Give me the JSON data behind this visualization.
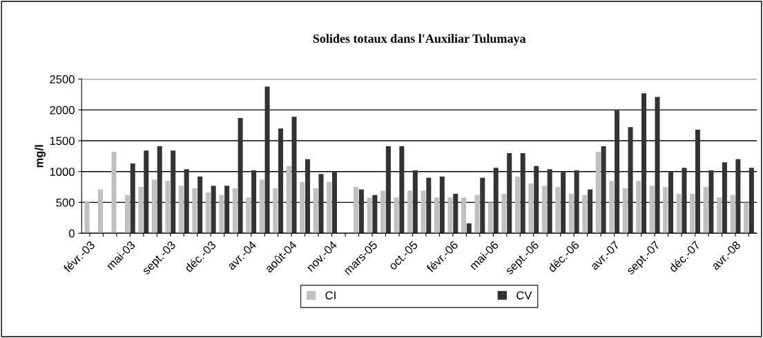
{
  "chart_data": {
    "type": "bar",
    "title": "Solides totaux dans l'Auxiliar Tulumaya",
    "ylabel": "mg/l",
    "categories": [
      "févr.-03",
      null,
      null,
      "mai-03",
      null,
      null,
      "sept.-03",
      null,
      null,
      "déc.-03",
      null,
      null,
      "avr.-04",
      null,
      null,
      "août-04",
      null,
      null,
      "nov.-04",
      null,
      null,
      "mars-05",
      null,
      null,
      "oct.-05",
      null,
      null,
      "févr.-06",
      null,
      null,
      "mai-06",
      null,
      null,
      "sept.-06",
      null,
      null,
      "déc.-06",
      null,
      null,
      "avr.-07",
      null,
      null,
      "sept.-07",
      null,
      null,
      "déc.-07",
      null,
      null,
      "avr.-08",
      null
    ],
    "series": [
      {
        "name": "CI",
        "color": "#c0c0c0",
        "values": [
          520,
          710,
          1320,
          620,
          750,
          870,
          850,
          770,
          730,
          660,
          620,
          730,
          580,
          870,
          730,
          1090,
          830,
          730,
          830,
          null,
          750,
          580,
          690,
          580,
          690,
          690,
          580,
          580,
          580,
          620,
          500,
          640,
          920,
          810,
          770,
          750,
          640,
          620,
          1320,
          850,
          730,
          850,
          770,
          750,
          640,
          640,
          750,
          580,
          620,
          500
        ]
      },
      {
        "name": "CV",
        "color": "#333333",
        "values": [
          null,
          null,
          null,
          1130,
          1340,
          1410,
          1340,
          1040,
          920,
          770,
          770,
          1870,
          1020,
          2380,
          1700,
          1890,
          1200,
          960,
          990,
          null,
          710,
          620,
          1410,
          1410,
          1020,
          900,
          920,
          640,
          160,
          900,
          1060,
          1300,
          1300,
          1090,
          1040,
          990,
          1020,
          710,
          1410,
          1990,
          1720,
          2270,
          2210,
          990,
          1060,
          1680,
          1020,
          1150,
          1200,
          1060
        ]
      }
    ],
    "ylim": [
      0,
      2500
    ],
    "yticks": [
      0,
      500,
      1000,
      1500,
      2000,
      2500
    ],
    "grid": "y",
    "legend": "bottom"
  }
}
